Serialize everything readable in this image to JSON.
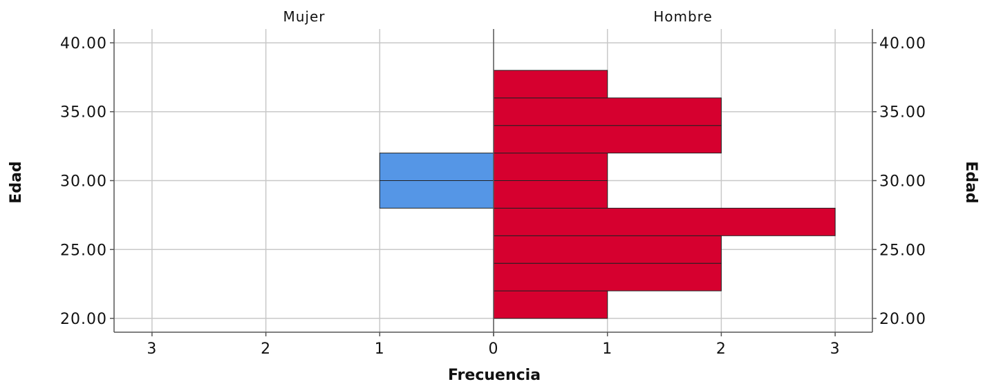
{
  "chart_data": {
    "type": "bar",
    "orientation": "population-pyramid",
    "xlabel": "Frecuencia",
    "ylabel": "Edad",
    "panels": [
      "Mujer",
      "Hombre"
    ],
    "bin_width": 2,
    "ylim": [
      19,
      41
    ],
    "yticks": [
      20,
      25,
      30,
      35,
      40
    ],
    "ytick_labels": [
      "20.00",
      "25.00",
      "30.00",
      "35.00",
      "40.00"
    ],
    "xticks_left": [
      3,
      2,
      1,
      0
    ],
    "xticks_right": [
      0,
      1,
      2,
      3
    ],
    "xlim": [
      0,
      3.3
    ],
    "grid": true,
    "series": [
      {
        "name": "Mujer",
        "color": "#5596e6",
        "bins": [
          {
            "from": 28,
            "to": 30,
            "count": 1
          },
          {
            "from": 30,
            "to": 32,
            "count": 1
          }
        ]
      },
      {
        "name": "Hombre",
        "color": "#d6002f",
        "bins": [
          {
            "from": 20,
            "to": 22,
            "count": 1
          },
          {
            "from": 22,
            "to": 24,
            "count": 2
          },
          {
            "from": 24,
            "to": 26,
            "count": 2
          },
          {
            "from": 26,
            "to": 28,
            "count": 3
          },
          {
            "from": 28,
            "to": 30,
            "count": 1
          },
          {
            "from": 30,
            "to": 32,
            "count": 1
          },
          {
            "from": 32,
            "to": 34,
            "count": 2
          },
          {
            "from": 34,
            "to": 36,
            "count": 2
          },
          {
            "from": 36,
            "to": 38,
            "count": 1
          }
        ]
      }
    ]
  }
}
